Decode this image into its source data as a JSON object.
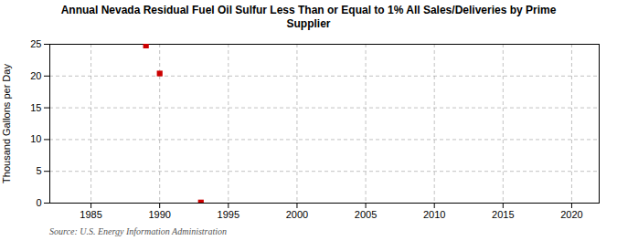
{
  "chart_data": {
    "type": "scatter",
    "title": "Annual Nevada Residual Fuel Oil Sulfur Less Than or Equal to 1% All Sales/Deliveries by Prime\nSupplier",
    "ylabel": "Thousand Gallons per Day",
    "source": "Source: U.S. Energy Information Administration",
    "x": [
      1989,
      1990,
      1993
    ],
    "values": [
      24.8,
      20.4,
      0.1
    ],
    "color": "#cc0000",
    "marker": "square",
    "xlim": [
      1982,
      2022
    ],
    "ylim": [
      0,
      25
    ],
    "xticks": [
      1985,
      1990,
      1995,
      2000,
      2005,
      2010,
      2015,
      2020
    ],
    "yticks": [
      0,
      5,
      10,
      15,
      20,
      25
    ],
    "grid": true
  }
}
